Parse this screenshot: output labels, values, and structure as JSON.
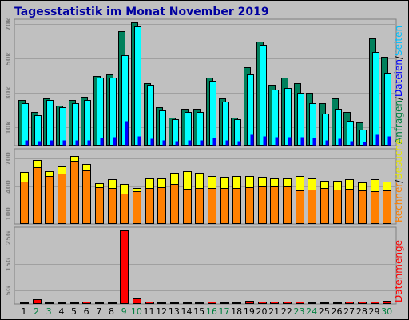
{
  "chart_data": [
    {
      "type": "bar",
      "title": "Tagesstatistik im Monat November 2019",
      "categories": [
        "1",
        "2",
        "3",
        "4",
        "5",
        "6",
        "7",
        "8",
        "9",
        "10",
        "11",
        "12",
        "13",
        "14",
        "15",
        "16",
        "17",
        "18",
        "19",
        "20",
        "21",
        "22",
        "23",
        "24",
        "25",
        "26",
        "27",
        "28",
        "29",
        "30"
      ],
      "weekend_days": [
        "2",
        "3",
        "9",
        "10",
        "16",
        "17",
        "23",
        "24",
        "30"
      ],
      "yticks": [
        "10k",
        "30k",
        "50k",
        "70k"
      ],
      "ylim": [
        0,
        73000
      ],
      "ylabels": [
        {
          "text": "Anfragen",
          "color": "#008040"
        },
        {
          "text": "/",
          "color": "#000000"
        },
        {
          "text": "Dateien",
          "color": "#0000ff"
        },
        {
          "text": "/",
          "color": "#000000"
        },
        {
          "text": "Seiten",
          "color": "#00c0ff"
        }
      ],
      "series": [
        {
          "name": "Anfragen",
          "color": "#00805c",
          "values": [
            26000,
            19000,
            27000,
            23000,
            26000,
            28000,
            40000,
            41000,
            66000,
            71000,
            36000,
            22000,
            16000,
            21000,
            21000,
            39000,
            27000,
            16000,
            45000,
            60000,
            35000,
            39000,
            36000,
            30000,
            24000,
            27000,
            19000,
            13000,
            62000,
            51000
          ]
        },
        {
          "name": "Dateien",
          "color": "#00ffff",
          "values": [
            24000,
            17000,
            26000,
            22000,
            24000,
            26000,
            39000,
            39000,
            52000,
            69000,
            35000,
            20000,
            15000,
            19000,
            19000,
            37000,
            25000,
            15000,
            41000,
            58000,
            32000,
            33000,
            30000,
            24000,
            18000,
            21000,
            14000,
            9000,
            54000,
            42000
          ]
        },
        {
          "name": "Seiten",
          "color": "#0000ff",
          "values": [
            3000,
            2500,
            3000,
            2800,
            3000,
            3000,
            4000,
            4500,
            14000,
            5000,
            3500,
            2800,
            2200,
            2700,
            2700,
            4000,
            3000,
            2200,
            6000,
            5000,
            4500,
            4500,
            4500,
            4000,
            3000,
            3500,
            2500,
            2000,
            6000,
            5000
          ]
        }
      ]
    },
    {
      "type": "bar",
      "yticks": [
        "100",
        "400",
        "700"
      ],
      "ylim": [
        0,
        800
      ],
      "ylabels": [
        {
          "text": "Rechner",
          "color": "#ff8000"
        },
        {
          "text": "/",
          "color": "#000000"
        },
        {
          "text": "Besuche",
          "color": "#e6e600"
        }
      ],
      "series": [
        {
          "name": "Besuche",
          "color": "#ffff00",
          "values": [
            550,
            680,
            560,
            610,
            720,
            640,
            430,
            470,
            420,
            380,
            480,
            480,
            540,
            560,
            540,
            510,
            500,
            510,
            510,
            500,
            480,
            480,
            510,
            480,
            460,
            460,
            470,
            440,
            470,
            450
          ]
        },
        {
          "name": "Rechner",
          "color": "#ff8000",
          "values": [
            450,
            600,
            510,
            530,
            670,
            570,
            390,
            380,
            320,
            340,
            380,
            390,
            420,
            370,
            380,
            380,
            380,
            380,
            390,
            400,
            400,
            400,
            350,
            360,
            380,
            360,
            370,
            350,
            340,
            350
          ]
        }
      ]
    },
    {
      "type": "bar",
      "yticks": [
        "5G",
        "15G",
        "25G"
      ],
      "ylim": [
        0,
        29000
      ],
      "ylabels": [
        {
          "text": "Datenmenge",
          "color": "#ff0000"
        }
      ],
      "series": [
        {
          "name": "Datenmenge",
          "color": "#ff0000",
          "values": [
            300,
            1600,
            300,
            300,
            300,
            500,
            300,
            300,
            27800,
            1700,
            500,
            300,
            300,
            300,
            300,
            500,
            300,
            300,
            1000,
            700,
            500,
            500,
            700,
            300,
            300,
            300,
            500,
            500,
            700,
            1000
          ]
        }
      ]
    }
  ]
}
